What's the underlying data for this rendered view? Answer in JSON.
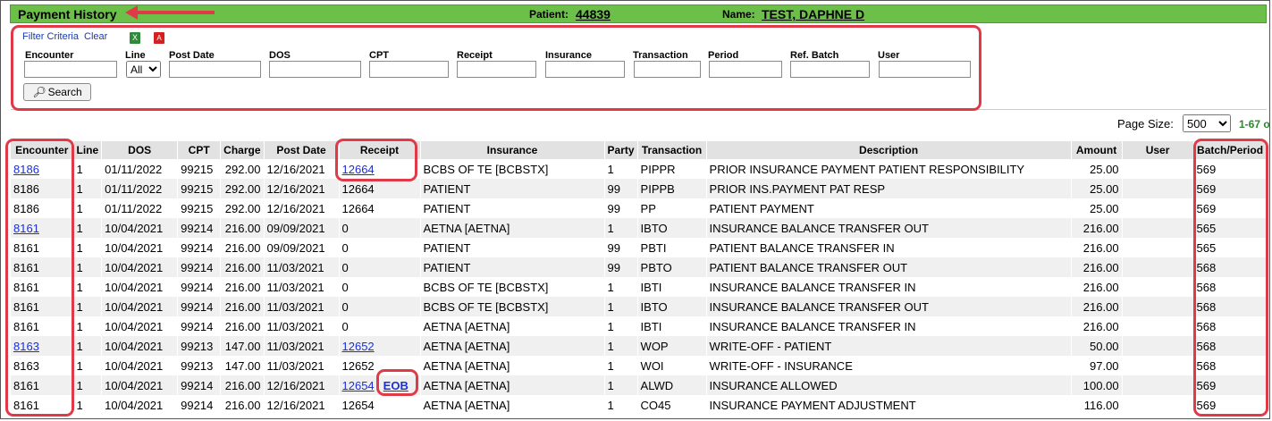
{
  "header": {
    "title": "Payment History",
    "patient_label": "Patient:",
    "patient_id": "44839",
    "name_label": "Name:",
    "patient_name": "TEST, DAPHNE D"
  },
  "filter": {
    "criteria_label": "Filter Criteria",
    "clear_label": "Clear",
    "fields": {
      "encounter": "Encounter",
      "line": "Line",
      "post_date": "Post Date",
      "dos": "DOS",
      "cpt": "CPT",
      "receipt": "Receipt",
      "insurance": "Insurance",
      "transaction": "Transaction",
      "period": "Period",
      "ref_batch": "Ref. Batch",
      "user": "User"
    },
    "line_selected": "All",
    "search_label": "Search"
  },
  "paging": {
    "page_size_label": "Page Size:",
    "page_size": "500",
    "range": "1-67 o"
  },
  "columns": [
    "Encounter",
    "Line",
    "DOS",
    "CPT",
    "Charge",
    "Post Date",
    "Receipt",
    "Insurance",
    "Party",
    "Transaction",
    "Description",
    "Amount",
    "User",
    "Batch/Period"
  ],
  "rows": [
    {
      "encounter": "8186",
      "enc_link": true,
      "line": "1",
      "dos": "01/11/2022",
      "cpt": "99215",
      "charge": "292.00",
      "post_date": "12/16/2021",
      "receipt": "12664",
      "rec_link": true,
      "eob": "",
      "insurance": "BCBS OF TE [BCBSTX]",
      "party": "1",
      "transaction": "PIPPR",
      "description": "PRIOR INSURANCE PAYMENT PATIENT RESPONSIBILITY",
      "amount": "25.00",
      "user": "",
      "batch": "569"
    },
    {
      "encounter": "8186",
      "enc_link": false,
      "line": "1",
      "dos": "01/11/2022",
      "cpt": "99215",
      "charge": "292.00",
      "post_date": "12/16/2021",
      "receipt": "12664",
      "rec_link": false,
      "eob": "",
      "insurance": "PATIENT",
      "party": "99",
      "transaction": "PIPPB",
      "description": "PRIOR INS.PAYMENT PAT RESP",
      "amount": "25.00",
      "user": "",
      "batch": "569"
    },
    {
      "encounter": "8186",
      "enc_link": false,
      "line": "1",
      "dos": "01/11/2022",
      "cpt": "99215",
      "charge": "292.00",
      "post_date": "12/16/2021",
      "receipt": "12664",
      "rec_link": false,
      "eob": "",
      "insurance": "PATIENT",
      "party": "99",
      "transaction": "PP",
      "description": "PATIENT PAYMENT",
      "amount": "25.00",
      "user": "",
      "batch": "569"
    },
    {
      "encounter": "8161",
      "enc_link": true,
      "line": "1",
      "dos": "10/04/2021",
      "cpt": "99214",
      "charge": "216.00",
      "post_date": "09/09/2021",
      "receipt": "0",
      "rec_link": false,
      "eob": "",
      "insurance": "AETNA [AETNA]",
      "party": "1",
      "transaction": "IBTO",
      "description": "INSURANCE BALANCE TRANSFER OUT",
      "amount": "216.00",
      "user": "",
      "batch": "565"
    },
    {
      "encounter": "8161",
      "enc_link": false,
      "line": "1",
      "dos": "10/04/2021",
      "cpt": "99214",
      "charge": "216.00",
      "post_date": "09/09/2021",
      "receipt": "0",
      "rec_link": false,
      "eob": "",
      "insurance": "PATIENT",
      "party": "99",
      "transaction": "PBTI",
      "description": "PATIENT BALANCE TRANSFER IN",
      "amount": "216.00",
      "user": "",
      "batch": "565"
    },
    {
      "encounter": "8161",
      "enc_link": false,
      "line": "1",
      "dos": "10/04/2021",
      "cpt": "99214",
      "charge": "216.00",
      "post_date": "11/03/2021",
      "receipt": "0",
      "rec_link": false,
      "eob": "",
      "insurance": "PATIENT",
      "party": "99",
      "transaction": "PBTO",
      "description": "PATIENT BALANCE TRANSFER OUT",
      "amount": "216.00",
      "user": "",
      "batch": "568"
    },
    {
      "encounter": "8161",
      "enc_link": false,
      "line": "1",
      "dos": "10/04/2021",
      "cpt": "99214",
      "charge": "216.00",
      "post_date": "11/03/2021",
      "receipt": "0",
      "rec_link": false,
      "eob": "",
      "insurance": "BCBS OF TE [BCBSTX]",
      "party": "1",
      "transaction": "IBTI",
      "description": "INSURANCE BALANCE TRANSFER IN",
      "amount": "216.00",
      "user": "",
      "batch": "568"
    },
    {
      "encounter": "8161",
      "enc_link": false,
      "line": "1",
      "dos": "10/04/2021",
      "cpt": "99214",
      "charge": "216.00",
      "post_date": "11/03/2021",
      "receipt": "0",
      "rec_link": false,
      "eob": "",
      "insurance": "BCBS OF TE [BCBSTX]",
      "party": "1",
      "transaction": "IBTO",
      "description": "INSURANCE BALANCE TRANSFER OUT",
      "amount": "216.00",
      "user": "",
      "batch": "568"
    },
    {
      "encounter": "8161",
      "enc_link": false,
      "line": "1",
      "dos": "10/04/2021",
      "cpt": "99214",
      "charge": "216.00",
      "post_date": "11/03/2021",
      "receipt": "0",
      "rec_link": false,
      "eob": "",
      "insurance": "AETNA [AETNA]",
      "party": "1",
      "transaction": "IBTI",
      "description": "INSURANCE BALANCE TRANSFER IN",
      "amount": "216.00",
      "user": "",
      "batch": "568"
    },
    {
      "encounter": "8163",
      "enc_link": true,
      "line": "1",
      "dos": "10/04/2021",
      "cpt": "99213",
      "charge": "147.00",
      "post_date": "11/03/2021",
      "receipt": "12652",
      "rec_link": true,
      "eob": "",
      "insurance": "AETNA [AETNA]",
      "party": "1",
      "transaction": "WOP",
      "description": "WRITE-OFF - PATIENT",
      "amount": "50.00",
      "user": "",
      "batch": "568"
    },
    {
      "encounter": "8163",
      "enc_link": false,
      "line": "1",
      "dos": "10/04/2021",
      "cpt": "99213",
      "charge": "147.00",
      "post_date": "11/03/2021",
      "receipt": "12652",
      "rec_link": false,
      "eob": "",
      "insurance": "AETNA [AETNA]",
      "party": "1",
      "transaction": "WOI",
      "description": "WRITE-OFF - INSURANCE",
      "amount": "97.00",
      "user": "",
      "batch": "568"
    },
    {
      "encounter": "8161",
      "enc_link": false,
      "line": "1",
      "dos": "10/04/2021",
      "cpt": "99214",
      "charge": "216.00",
      "post_date": "12/16/2021",
      "receipt": "12654",
      "rec_link": true,
      "eob": "EOB",
      "insurance": "AETNA [AETNA]",
      "party": "1",
      "transaction": "ALWD",
      "description": "INSURANCE ALLOWED",
      "amount": "100.00",
      "user": "",
      "batch": "569"
    },
    {
      "encounter": "8161",
      "enc_link": false,
      "line": "1",
      "dos": "10/04/2021",
      "cpt": "99214",
      "charge": "216.00",
      "post_date": "12/16/2021",
      "receipt": "12654",
      "rec_link": false,
      "eob": "",
      "insurance": "AETNA [AETNA]",
      "party": "1",
      "transaction": "CO45",
      "description": "INSURANCE PAYMENT ADJUSTMENT",
      "amount": "116.00",
      "user": "",
      "batch": "569"
    }
  ],
  "colors": {
    "title_bar": "#6cc04a",
    "annotation": "#e03a48",
    "link": "#1a2fd8"
  }
}
